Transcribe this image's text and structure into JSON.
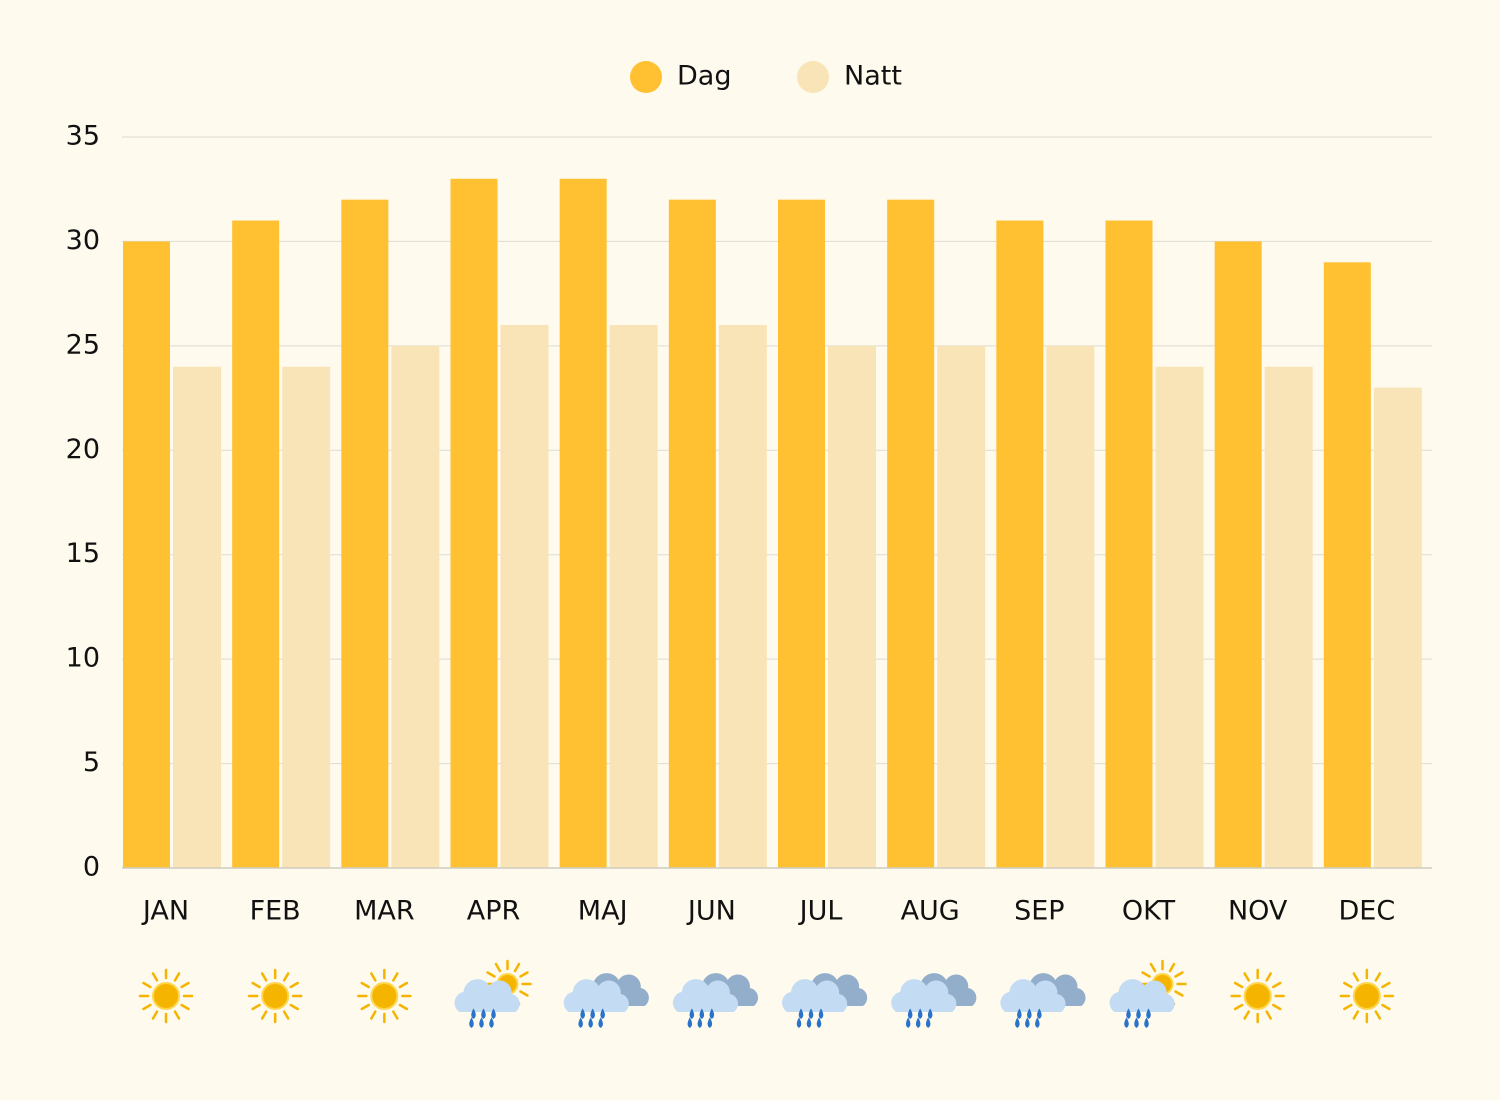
{
  "chart_data": {
    "type": "bar",
    "categories": [
      "JAN",
      "FEB",
      "MAR",
      "APR",
      "MAJ",
      "JUN",
      "JUL",
      "AUG",
      "SEP",
      "OKT",
      "NOV",
      "DEC"
    ],
    "series": [
      {
        "name": "Dag",
        "color": "#ffc032",
        "values": [
          30,
          31,
          32,
          33,
          33,
          32,
          32,
          32,
          31,
          31,
          30,
          29
        ]
      },
      {
        "name": "Natt",
        "color": "#f9e4b7",
        "values": [
          24,
          24,
          25,
          26,
          26,
          26,
          25,
          25,
          25,
          24,
          24,
          23
        ]
      }
    ],
    "ylim": [
      0,
      35
    ],
    "yticks": [
      0,
      5,
      10,
      15,
      20,
      25,
      30,
      35
    ],
    "grid": true,
    "legend": "top"
  }
}
